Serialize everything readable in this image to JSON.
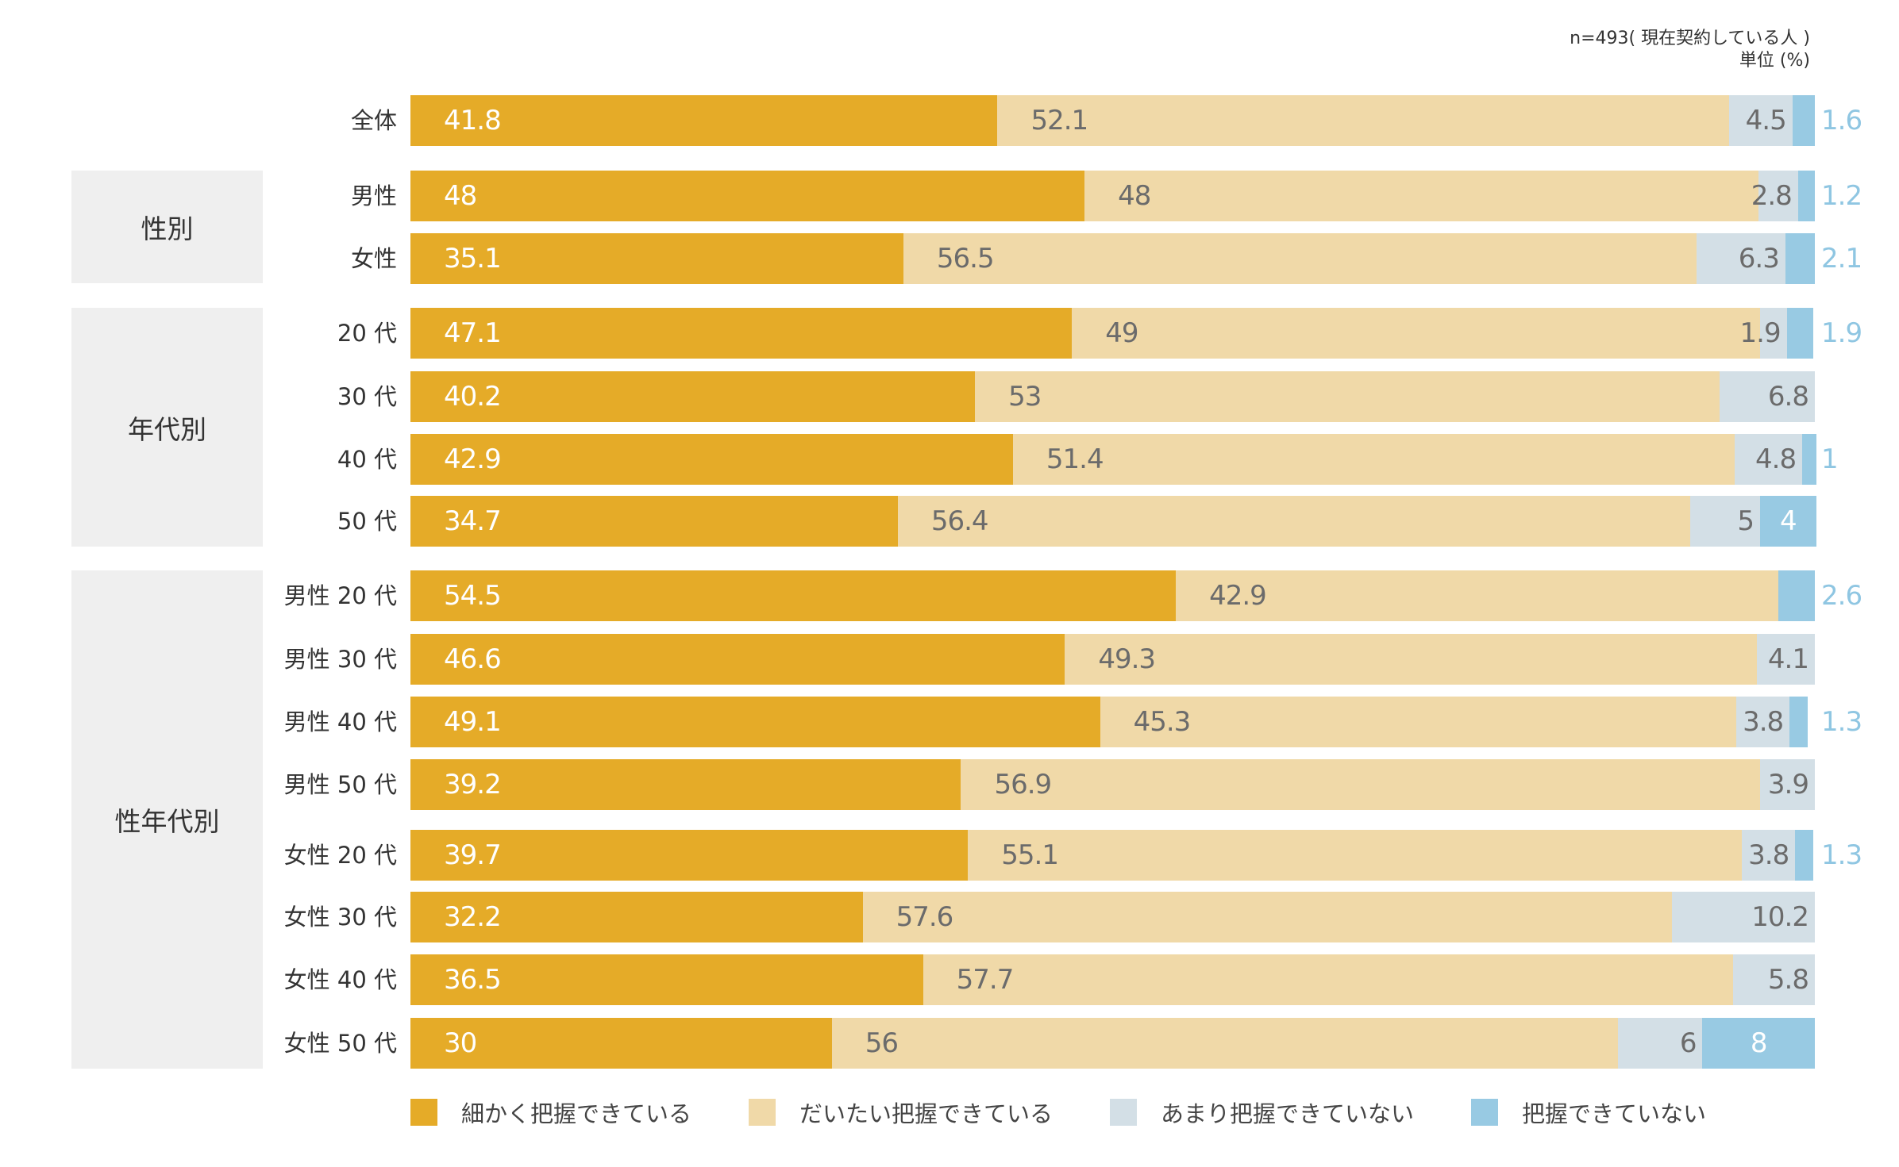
{
  "chart_data": {
    "type": "bar",
    "orientation": "horizontal-stacked-100",
    "note_sample": "n=493( 現在契約している人 )",
    "note_unit": "単位 (%)",
    "legend": [
      {
        "name": "細かく把握できている",
        "color": "#E5AB28"
      },
      {
        "name": "だいたい把握できている",
        "color": "#F0D9A8"
      },
      {
        "name": "あまり把握できていない",
        "color": "#D3DFE6"
      },
      {
        "name": "把握できていない",
        "color": "#98CAE3"
      }
    ],
    "groups": [
      {
        "label": "性別"
      },
      {
        "label": "年代別"
      },
      {
        "label": "性年代別"
      }
    ],
    "categories": [
      "全体",
      "男性",
      "女性",
      "20 代",
      "30 代",
      "40 代",
      "50 代",
      "男性 20 代",
      "男性 30 代",
      "男性 40 代",
      "男性 50 代",
      "女性 20 代",
      "女性 30 代",
      "女性 40 代",
      "女性 50 代"
    ],
    "series": [
      {
        "name": "細かく把握できている",
        "values": [
          41.8,
          48,
          35.1,
          47.1,
          40.2,
          42.9,
          34.7,
          54.5,
          46.6,
          49.1,
          39.2,
          39.7,
          32.2,
          36.5,
          30
        ]
      },
      {
        "name": "だいたい把握できている",
        "values": [
          52.1,
          48,
          56.5,
          49,
          53,
          51.4,
          56.4,
          42.9,
          49.3,
          45.3,
          56.9,
          55.1,
          57.6,
          57.7,
          56
        ]
      },
      {
        "name": "あまり把握できていない",
        "values": [
          4.5,
          2.8,
          6.3,
          1.9,
          6.8,
          4.8,
          5,
          null,
          4.1,
          3.8,
          3.9,
          3.8,
          10.2,
          5.8,
          6
        ]
      },
      {
        "name": "把握できていない",
        "values": [
          1.6,
          1.2,
          2.1,
          1.9,
          null,
          1,
          4,
          2.6,
          null,
          1.3,
          null,
          1.3,
          null,
          null,
          8
        ]
      }
    ],
    "xlim": [
      0,
      100
    ]
  }
}
